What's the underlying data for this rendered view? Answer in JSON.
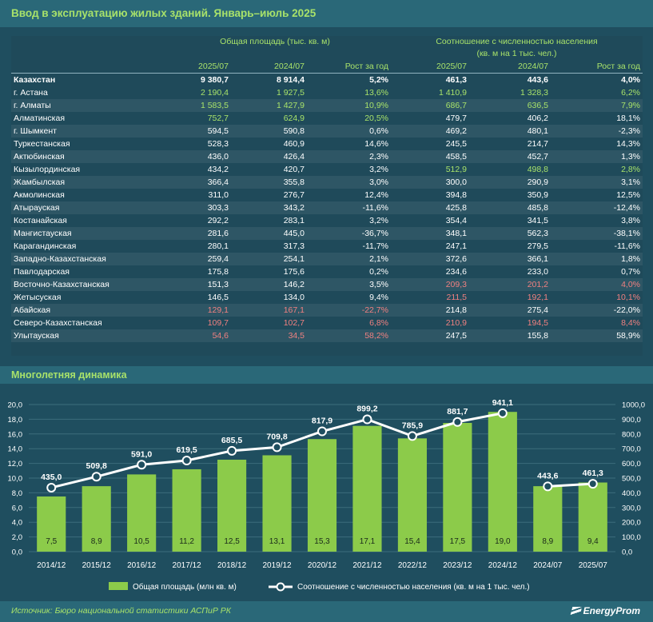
{
  "title": "Ввод в эксплуатацию жилых зданий. Январь–июль 2025",
  "table": {
    "group1": "Общая площадь (тыс. кв. м)",
    "group2_line1": "Соотношение с численностью населения",
    "group2_line2": "(кв. м на 1 тыс. чел.)",
    "columns": [
      "2025/07",
      "2024/07",
      "Рост за год",
      "2025/07",
      "2024/07",
      "Рост за год"
    ],
    "rows": [
      {
        "name": "Казахстан",
        "v": [
          "9 380,7",
          "8 914,4",
          "5,2%",
          "461,3",
          "443,6",
          "4,0%"
        ],
        "c": [
          "",
          "",
          "",
          "",
          "",
          ""
        ]
      },
      {
        "name": "г. Астана",
        "v": [
          "2 190,4",
          "1 927,5",
          "13,6%",
          "1 410,9",
          "1 328,3",
          "6,2%"
        ],
        "c": [
          "g",
          "g",
          "g",
          "g",
          "g",
          "g"
        ]
      },
      {
        "name": "г. Алматы",
        "v": [
          "1 583,5",
          "1 427,9",
          "10,9%",
          "686,7",
          "636,5",
          "7,9%"
        ],
        "c": [
          "g",
          "g",
          "g",
          "g",
          "g",
          "g"
        ]
      },
      {
        "name": "Алматинская",
        "v": [
          "752,7",
          "624,9",
          "20,5%",
          "479,7",
          "406,2",
          "18,1%"
        ],
        "c": [
          "g",
          "g",
          "g",
          "",
          "",
          ""
        ]
      },
      {
        "name": "г. Шымкент",
        "v": [
          "594,5",
          "590,8",
          "0,6%",
          "469,2",
          "480,1",
          "-2,3%"
        ],
        "c": [
          "",
          "",
          "",
          "",
          "",
          ""
        ]
      },
      {
        "name": "Туркестанская",
        "v": [
          "528,3",
          "460,9",
          "14,6%",
          "245,5",
          "214,7",
          "14,3%"
        ],
        "c": [
          "",
          "",
          "",
          "",
          "",
          ""
        ]
      },
      {
        "name": "Актюбинская",
        "v": [
          "436,0",
          "426,4",
          "2,3%",
          "458,5",
          "452,7",
          "1,3%"
        ],
        "c": [
          "",
          "",
          "",
          "",
          "",
          ""
        ]
      },
      {
        "name": "Кызылординская",
        "v": [
          "434,2",
          "420,7",
          "3,2%",
          "512,9",
          "498,8",
          "2,8%"
        ],
        "c": [
          "",
          "",
          "",
          "g",
          "g",
          "g"
        ]
      },
      {
        "name": "Жамбылская",
        "v": [
          "366,4",
          "355,8",
          "3,0%",
          "300,0",
          "290,9",
          "3,1%"
        ],
        "c": [
          "",
          "",
          "",
          "",
          "",
          ""
        ]
      },
      {
        "name": "Акмолинская",
        "v": [
          "311,0",
          "276,7",
          "12,4%",
          "394,8",
          "350,9",
          "12,5%"
        ],
        "c": [
          "",
          "",
          "",
          "",
          "",
          ""
        ]
      },
      {
        "name": "Атырауская",
        "v": [
          "303,3",
          "343,2",
          "-11,6%",
          "425,8",
          "485,8",
          "-12,4%"
        ],
        "c": [
          "",
          "",
          "",
          "",
          "",
          ""
        ]
      },
      {
        "name": "Костанайская",
        "v": [
          "292,2",
          "283,1",
          "3,2%",
          "354,4",
          "341,5",
          "3,8%"
        ],
        "c": [
          "",
          "",
          "",
          "",
          "",
          ""
        ]
      },
      {
        "name": "Мангистауская",
        "v": [
          "281,6",
          "445,0",
          "-36,7%",
          "348,1",
          "562,3",
          "-38,1%"
        ],
        "c": [
          "",
          "",
          "",
          "",
          "",
          ""
        ]
      },
      {
        "name": "Карагандинская",
        "v": [
          "280,1",
          "317,3",
          "-11,7%",
          "247,1",
          "279,5",
          "-11,6%"
        ],
        "c": [
          "",
          "",
          "",
          "",
          "",
          ""
        ]
      },
      {
        "name": "Западно-Казахстанская",
        "v": [
          "259,4",
          "254,1",
          "2,1%",
          "372,6",
          "366,1",
          "1,8%"
        ],
        "c": [
          "",
          "",
          "",
          "",
          "",
          ""
        ]
      },
      {
        "name": "Павлодарская",
        "v": [
          "175,8",
          "175,6",
          "0,2%",
          "234,6",
          "233,0",
          "0,7%"
        ],
        "c": [
          "",
          "",
          "",
          "",
          "",
          ""
        ]
      },
      {
        "name": "Восточно-Казахстанская",
        "v": [
          "151,3",
          "146,2",
          "3,5%",
          "209,3",
          "201,2",
          "4,0%"
        ],
        "c": [
          "",
          "",
          "",
          "r",
          "r",
          "r"
        ]
      },
      {
        "name": "Жетысуская",
        "v": [
          "146,5",
          "134,0",
          "9,4%",
          "211,5",
          "192,1",
          "10,1%"
        ],
        "c": [
          "",
          "",
          "",
          "r",
          "r",
          "r"
        ]
      },
      {
        "name": "Абайская",
        "v": [
          "129,1",
          "167,1",
          "-22,7%",
          "214,8",
          "275,4",
          "-22,0%"
        ],
        "c": [
          "r",
          "r",
          "r",
          "",
          "",
          ""
        ]
      },
      {
        "name": "Северо-Казахстанская",
        "v": [
          "109,7",
          "102,7",
          "6,8%",
          "210,9",
          "194,5",
          "8,4%"
        ],
        "c": [
          "r",
          "r",
          "r",
          "r",
          "r",
          "r"
        ]
      },
      {
        "name": "Улытауская",
        "v": [
          "54,6",
          "34,5",
          "58,2%",
          "247,5",
          "155,8",
          "58,9%"
        ],
        "c": [
          "r",
          "r",
          "r",
          "",
          "",
          ""
        ]
      }
    ]
  },
  "chart_section_title": "Многолетняя динамика",
  "chart_data": {
    "type": "bar",
    "categories": [
      "2014/12",
      "2015/12",
      "2016/12",
      "2017/12",
      "2018/12",
      "2019/12",
      "2020/12",
      "2021/12",
      "2022/12",
      "2023/12",
      "2024/12",
      "2024/07",
      "2025/07"
    ],
    "series": [
      {
        "name": "Общая площадь (млн кв. м)",
        "type": "bar",
        "axis": "left",
        "values": [
          7.5,
          8.9,
          10.5,
          11.2,
          12.5,
          13.1,
          15.3,
          17.1,
          15.4,
          17.5,
          19.0,
          8.9,
          9.4
        ],
        "labels": [
          "7,5",
          "8,9",
          "10,5",
          "11,2",
          "12,5",
          "13,1",
          "15,3",
          "17,1",
          "15,4",
          "17,5",
          "19,0",
          "8,9",
          "9,4"
        ]
      },
      {
        "name": "Соотношение с численностью населения (кв. м на 1 тыс. чел.)",
        "type": "line",
        "axis": "right",
        "values": [
          435.0,
          509.8,
          591.0,
          619.5,
          685.5,
          709.8,
          817.9,
          899.2,
          785.9,
          881.7,
          941.1,
          443.6,
          461.3
        ],
        "labels": [
          "435,0",
          "509,8",
          "591,0",
          "619,5",
          "685,5",
          "709,8",
          "817,9",
          "899,2",
          "785,9",
          "881,7",
          "941,1",
          "443,6",
          "461,3"
        ]
      }
    ],
    "line_segments": [
      [
        0,
        10
      ],
      [
        11,
        12
      ]
    ],
    "ylim_left": [
      0,
      20
    ],
    "ylim_right": [
      0,
      1000
    ],
    "yticks_left": [
      "0,0",
      "2,0",
      "4,0",
      "6,0",
      "8,0",
      "10,0",
      "12,0",
      "14,0",
      "16,0",
      "18,0",
      "20,0"
    ],
    "yticks_right": [
      "0,0",
      "100,0",
      "200,0",
      "300,0",
      "400,0",
      "500,0",
      "600,0",
      "700,0",
      "800,0",
      "900,0",
      "1000,0"
    ],
    "grid": true,
    "legend_position": "bottom",
    "colors": {
      "bar": "#8ccb4a",
      "line": "#ffffff",
      "grid": "#3d6d7c",
      "axis_text": "#ffffff"
    }
  },
  "footer": {
    "source": "Источник: Бюро национальной статистики АСПиР РК",
    "logo": "EnergyProm"
  }
}
